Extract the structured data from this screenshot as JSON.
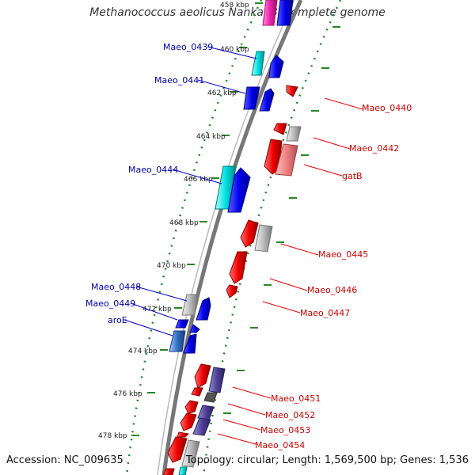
{
  "title": "Methanococcus aeolicus Nankai-3, complete genome",
  "footer": {
    "accession": "Accession: NC_009635",
    "summary": "Topology: circular; Length: 1,569,500 bp; Genes: 1,536"
  },
  "colors": {
    "forward_gene": "#0000ee",
    "reverse_gene": "#ee0000",
    "forward_label": "#0000aa",
    "reverse_label": "#cc0000",
    "tick": "#228822",
    "backbone": "#888888"
  },
  "ticks": [
    {
      "kbp": 458,
      "label": "458 kbp"
    },
    {
      "kbp": 460,
      "label": "460 kbp"
    },
    {
      "kbp": 462,
      "label": "462 kbp"
    },
    {
      "kbp": 464,
      "label": "464 kbp"
    },
    {
      "kbp": 466,
      "label": "466 kbp"
    },
    {
      "kbp": 468,
      "label": "468 kbp"
    },
    {
      "kbp": 470,
      "label": "470 kbp"
    },
    {
      "kbp": 472,
      "label": "472 kbp"
    },
    {
      "kbp": 474,
      "label": "474 kbp"
    },
    {
      "kbp": 476,
      "label": "476 kbp"
    },
    {
      "kbp": 478,
      "label": "478 kbp"
    }
  ],
  "forward_labels": [
    {
      "name": "Maeo_0439"
    },
    {
      "name": "Maeo_0441"
    },
    {
      "name": "Maeo_0444"
    },
    {
      "name": "Maeo_0448"
    },
    {
      "name": "Maeo_0449"
    },
    {
      "name": "aroE"
    }
  ],
  "reverse_labels": [
    {
      "name": "Maeo_0440"
    },
    {
      "name": "Maeo_0442"
    },
    {
      "name": "gatB"
    },
    {
      "name": "Maeo_0445"
    },
    {
      "name": "Maeo_0446"
    },
    {
      "name": "Maeo_0447"
    },
    {
      "name": "Maeo_0451"
    },
    {
      "name": "Maeo_0452"
    },
    {
      "name": "Maeo_0453"
    },
    {
      "name": "Maeo_0454"
    }
  ]
}
